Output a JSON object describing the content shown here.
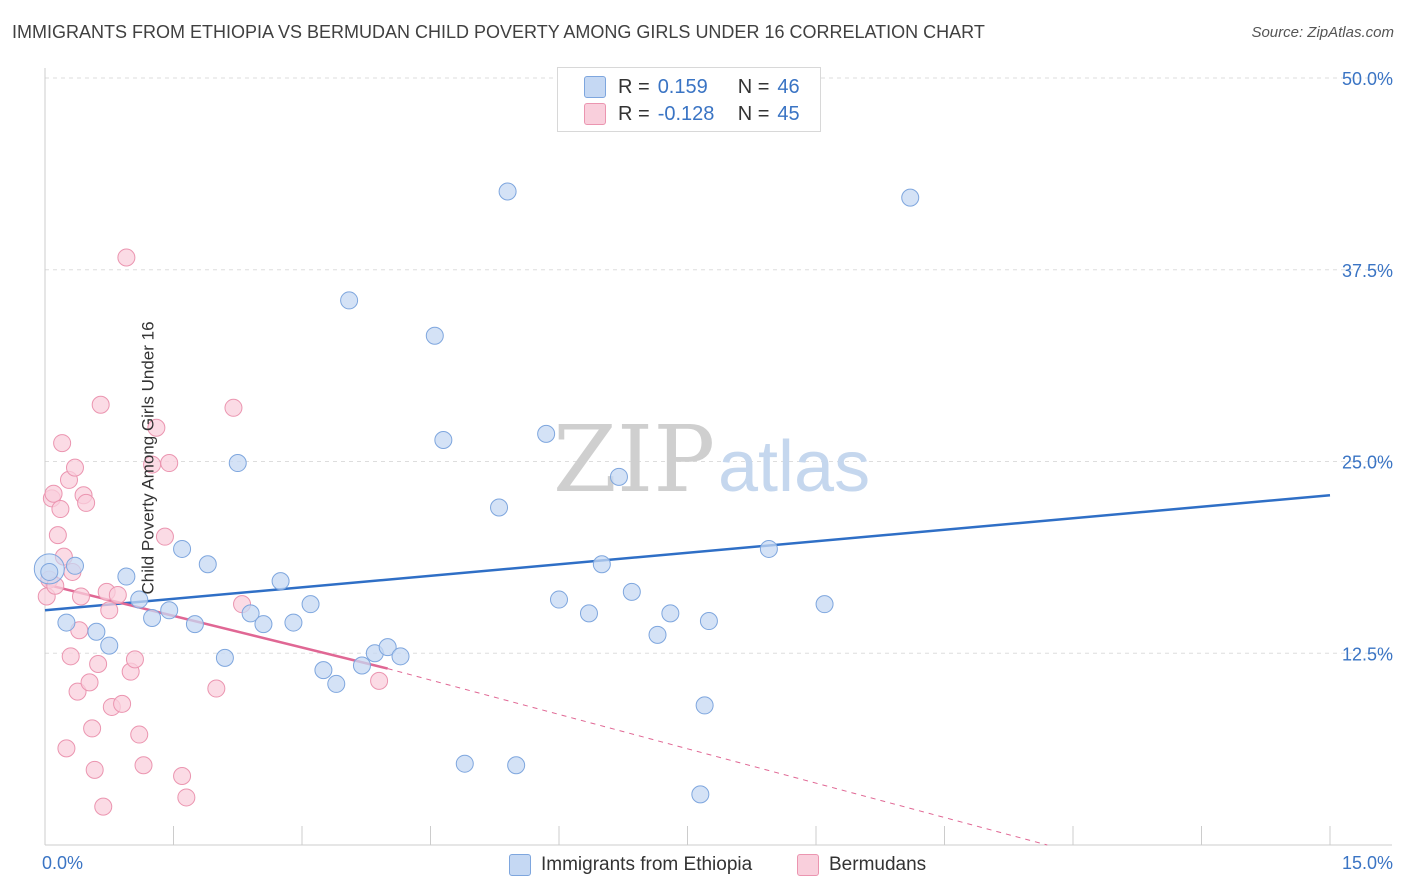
{
  "title": "IMMIGRANTS FROM ETHIOPIA VS BERMUDAN CHILD POVERTY AMONG GIRLS UNDER 16 CORRELATION CHART",
  "source": "Source: ZipAtlas.com",
  "watermark": {
    "zip": "ZIP",
    "atlas": "atlas"
  },
  "legend": {
    "r_label": "R =",
    "n_label": "N =",
    "series": [
      {
        "r": "0.159",
        "n": "46"
      },
      {
        "r": "-0.128",
        "n": "45"
      }
    ]
  },
  "colors": {
    "blue_fill": "#c5d8f3",
    "blue_stroke": "#7ea6de",
    "blue_line": "#2f6fc6",
    "pink_fill": "#f9cfdc",
    "pink_stroke": "#eb95b0",
    "pink_line": "#e06794",
    "axis_text": "#3a74c4",
    "grid": "#dddddd"
  },
  "chart_data": {
    "type": "scatter",
    "title": "IMMIGRANTS FROM ETHIOPIA VS BERMUDAN CHILD POVERTY AMONG GIRLS UNDER 16 CORRELATION CHART",
    "xlabel": "",
    "ylabel": "Child Poverty Among Girls Under 16",
    "xlim": [
      0,
      15
    ],
    "ylim": [
      0,
      50
    ],
    "x_tick_labels": [
      "0.0%",
      "15.0%"
    ],
    "y_ticks": [
      12.5,
      25.0,
      37.5,
      50.0
    ],
    "y_tick_labels": [
      "12.5%",
      "25.0%",
      "37.5%",
      "50.0%"
    ],
    "grid": true,
    "legend_position": "top-center",
    "series": [
      {
        "name": "Immigrants from Ethiopia",
        "color": "#c5d8f3",
        "trend": {
          "x": [
            0,
            15
          ],
          "y": [
            15.3,
            22.8
          ]
        },
        "points": [
          [
            0.05,
            17.8
          ],
          [
            0.25,
            14.5
          ],
          [
            0.35,
            18.2
          ],
          [
            0.6,
            13.9
          ],
          [
            0.75,
            13.0
          ],
          [
            0.95,
            17.5
          ],
          [
            1.1,
            16.0
          ],
          [
            1.25,
            14.8
          ],
          [
            1.45,
            15.3
          ],
          [
            1.6,
            19.3
          ],
          [
            1.75,
            14.4
          ],
          [
            1.9,
            18.3
          ],
          [
            2.1,
            12.2
          ],
          [
            2.25,
            24.9
          ],
          [
            2.4,
            15.1
          ],
          [
            2.55,
            14.4
          ],
          [
            2.75,
            17.2
          ],
          [
            2.9,
            14.5
          ],
          [
            3.1,
            15.7
          ],
          [
            3.25,
            11.4
          ],
          [
            3.4,
            10.5
          ],
          [
            3.55,
            35.5
          ],
          [
            3.7,
            11.7
          ],
          [
            3.85,
            12.5
          ],
          [
            4.0,
            12.9
          ],
          [
            4.15,
            12.3
          ],
          [
            4.55,
            33.2
          ],
          [
            4.65,
            26.4
          ],
          [
            4.9,
            5.3
          ],
          [
            5.3,
            22.0
          ],
          [
            5.4,
            42.6
          ],
          [
            5.5,
            5.2
          ],
          [
            5.85,
            26.8
          ],
          [
            6.0,
            16.0
          ],
          [
            6.35,
            15.1
          ],
          [
            6.5,
            18.3
          ],
          [
            6.7,
            24.0
          ],
          [
            6.85,
            16.5
          ],
          [
            7.15,
            13.7
          ],
          [
            7.3,
            15.1
          ],
          [
            7.65,
            3.3
          ],
          [
            7.7,
            9.1
          ],
          [
            7.75,
            14.6
          ],
          [
            8.45,
            19.3
          ],
          [
            9.1,
            15.7
          ],
          [
            10.1,
            42.2
          ]
        ]
      },
      {
        "name": "Bermudans",
        "color": "#f9cfdc",
        "trend": {
          "x": [
            0,
            4.0
          ],
          "y": [
            17.0,
            11.5
          ]
        },
        "trend_dashed": {
          "x": [
            4.0,
            11.7
          ],
          "y": [
            11.5,
            0
          ]
        },
        "points": [
          [
            0.02,
            16.2
          ],
          [
            0.05,
            17.3
          ],
          [
            0.08,
            22.6
          ],
          [
            0.1,
            22.9
          ],
          [
            0.12,
            16.9
          ],
          [
            0.15,
            20.2
          ],
          [
            0.18,
            21.9
          ],
          [
            0.2,
            26.2
          ],
          [
            0.22,
            18.8
          ],
          [
            0.25,
            6.3
          ],
          [
            0.28,
            23.8
          ],
          [
            0.3,
            12.3
          ],
          [
            0.32,
            17.8
          ],
          [
            0.35,
            24.6
          ],
          [
            0.38,
            10.0
          ],
          [
            0.4,
            14.0
          ],
          [
            0.42,
            16.2
          ],
          [
            0.45,
            22.8
          ],
          [
            0.48,
            22.3
          ],
          [
            0.52,
            10.6
          ],
          [
            0.55,
            7.6
          ],
          [
            0.58,
            4.9
          ],
          [
            0.62,
            11.8
          ],
          [
            0.65,
            28.7
          ],
          [
            0.68,
            2.5
          ],
          [
            0.72,
            16.5
          ],
          [
            0.75,
            15.3
          ],
          [
            0.78,
            9.0
          ],
          [
            0.85,
            16.3
          ],
          [
            0.9,
            9.2
          ],
          [
            0.95,
            38.3
          ],
          [
            1.0,
            11.3
          ],
          [
            1.05,
            12.1
          ],
          [
            1.1,
            7.2
          ],
          [
            1.15,
            5.2
          ],
          [
            1.25,
            24.8
          ],
          [
            1.3,
            27.2
          ],
          [
            1.4,
            20.1
          ],
          [
            1.45,
            24.9
          ],
          [
            1.6,
            4.5
          ],
          [
            1.65,
            3.1
          ],
          [
            2.0,
            10.2
          ],
          [
            2.2,
            28.5
          ],
          [
            2.3,
            15.7
          ],
          [
            3.9,
            10.7
          ]
        ]
      }
    ]
  }
}
